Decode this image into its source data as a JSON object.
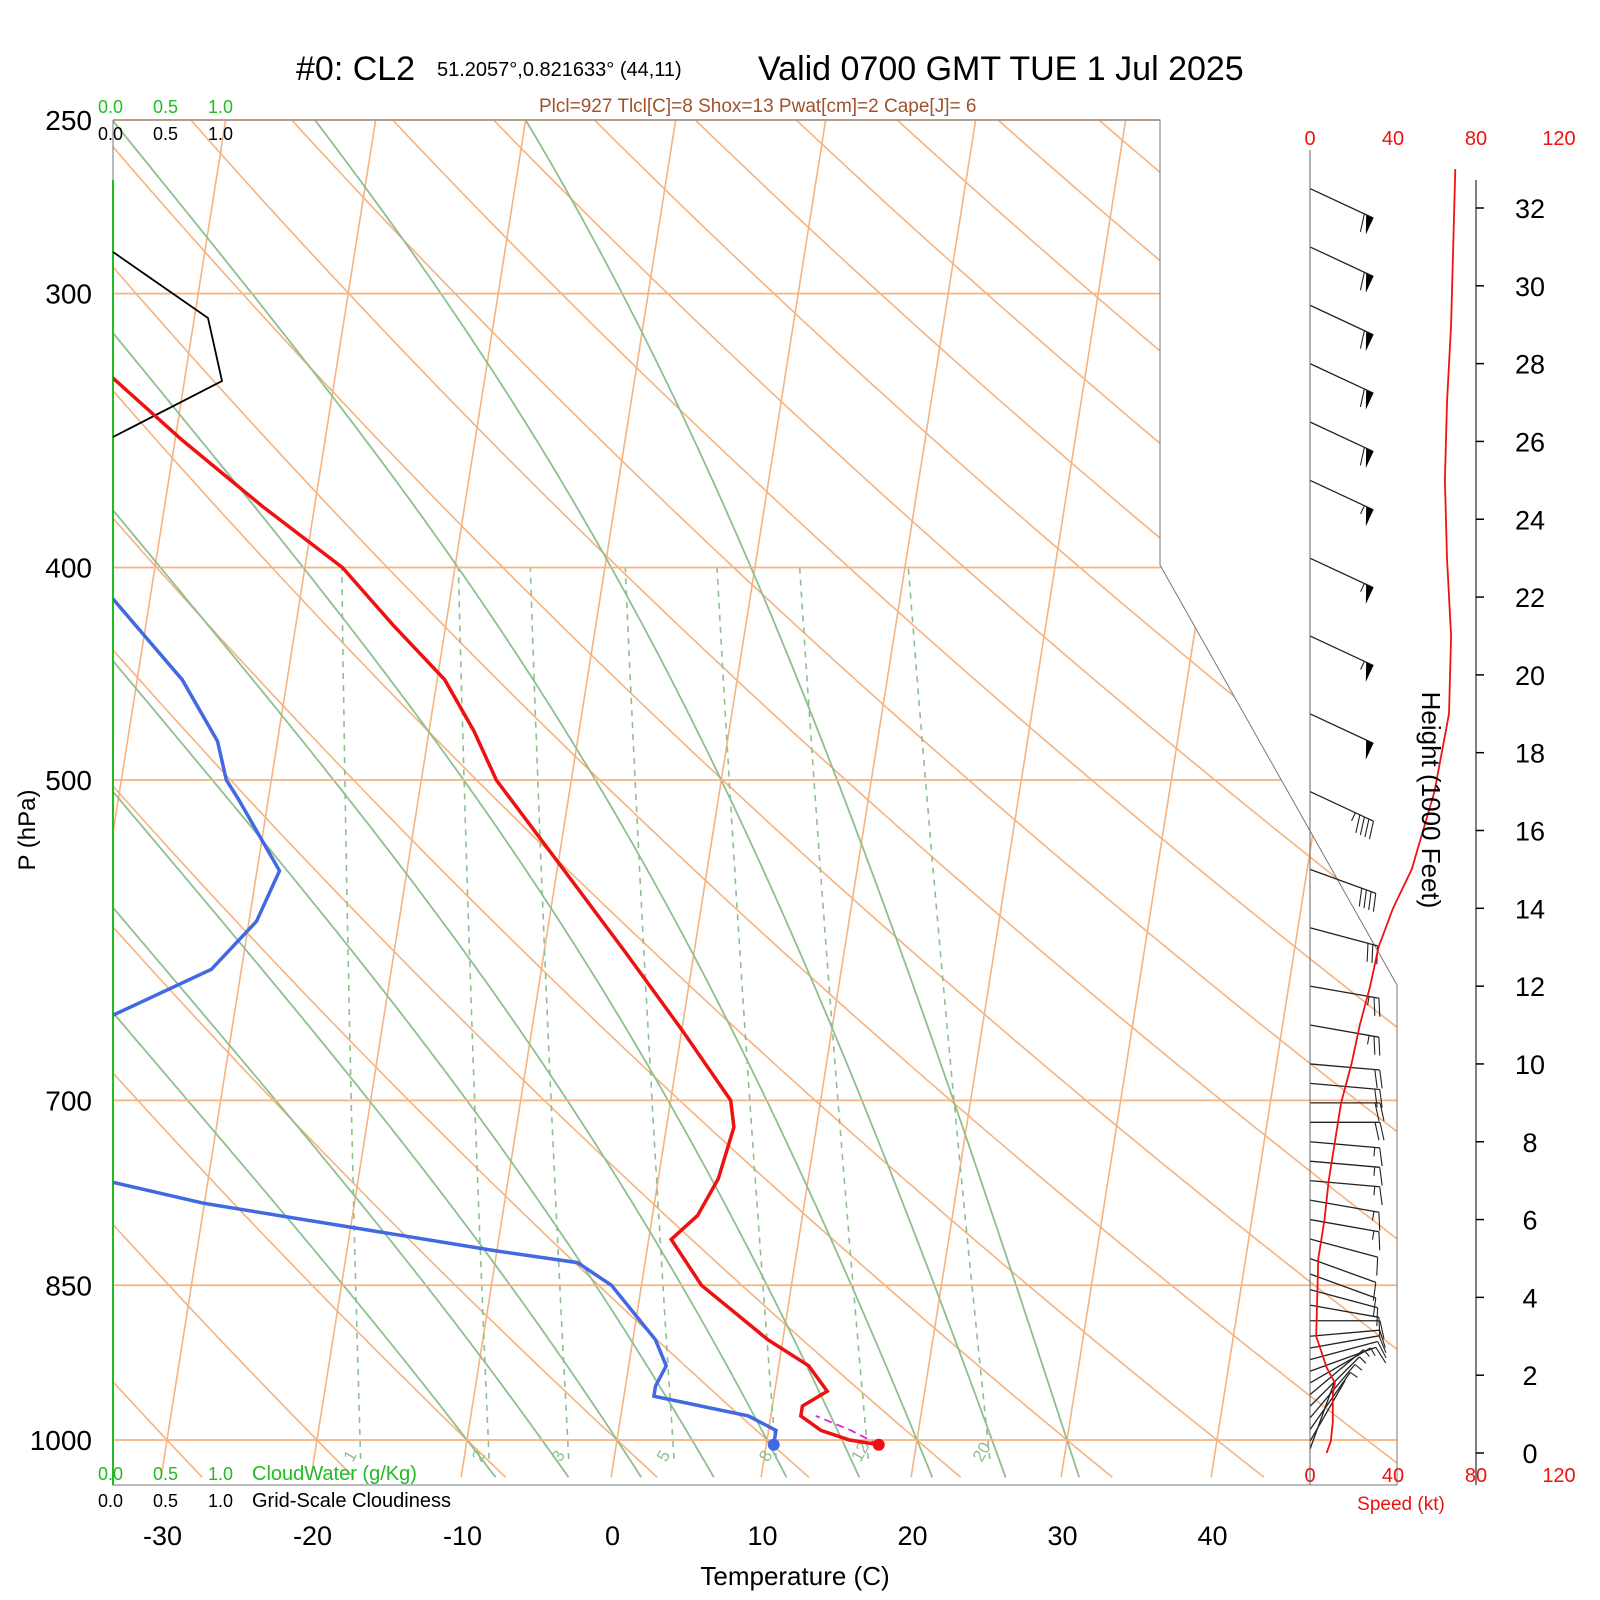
{
  "header": {
    "station": "#0: CL2",
    "location": "51.2057°,0.821633° (44,11)",
    "valid": "Valid 0700 GMT TUE 1 Jul 2025",
    "indices": "Plcl=927 Tlcl[C]=8 Shox=13 Pwat[cm]=2 Cape[J]= 6"
  },
  "colors": {
    "temperature": "#ee1111",
    "dewpoint": "#4169e1",
    "isotherm": "#f5b37f",
    "dry_adiabat": "#f5b37f",
    "moist_adiabat": "#8fbf8f",
    "mixing_ratio": "#8fbf8f",
    "cloud_water": "#22bb22",
    "index_text": "#a0522d",
    "speed": "#ee1111"
  },
  "chart_data": {
    "type": "skew-t",
    "xlabel": "Temperature (C)",
    "ylabel": "P (hPa)",
    "height_label": "Height (1000 Feet)",
    "speed_label": "Speed (kt)",
    "x_ticks": [
      -30,
      -20,
      -10,
      0,
      10,
      20,
      30,
      40
    ],
    "pressure_ticks": [
      250,
      300,
      400,
      500,
      700,
      850,
      1000
    ],
    "height_ticks": [
      0,
      2,
      4,
      6,
      8,
      10,
      12,
      14,
      16,
      18,
      20,
      22,
      24,
      26,
      28,
      30,
      32
    ],
    "speed_ticks": [
      0,
      40,
      80,
      120
    ],
    "cloud_ticks": [
      "0.0",
      "0.5",
      "1.0"
    ],
    "cloud_water_label": "CloudWater (g/Kg)",
    "cloudiness_label": "Grid-Scale Cloudiness",
    "ylim_hpa": [
      1030,
      250
    ],
    "xlim_c_at_surface": [
      -34,
      36
    ],
    "temperature": {
      "name": "Temperature",
      "p": [
        1005,
        1000,
        990,
        975,
        965,
        950,
        925,
        900,
        850,
        810,
        790,
        760,
        720,
        700,
        650,
        600,
        550,
        500,
        475,
        450,
        425,
        400,
        375,
        350,
        325,
        300,
        280,
        265
      ],
      "t": [
        17.5,
        15.5,
        13.5,
        12.0,
        12.0,
        13.5,
        12.0,
        9.0,
        4.0,
        1.5,
        3.0,
        4.0,
        4.5,
        4.0,
        0.0,
        -4.5,
        -9.5,
        -15.0,
        -17.0,
        -19.5,
        -23.5,
        -27.5,
        -33.5,
        -39.5,
        -45.5,
        -53.0,
        -59.0,
        -63.0
      ]
    },
    "dewpoint": {
      "name": "Dewpoint",
      "p": [
        1005,
        990,
        975,
        955,
        945,
        925,
        900,
        850,
        830,
        820,
        780,
        740,
        715,
        700,
        665,
        650,
        610,
        580,
        550,
        510,
        500,
        480,
        450,
        410,
        375,
        340,
        310,
        280,
        265
      ],
      "t": [
        10.5,
        10.5,
        8.5,
        2.0,
        2.0,
        2.5,
        1.5,
        -2.0,
        -4.5,
        -10.0,
        -30.0,
        -45.0,
        -52.0,
        -52.0,
        -45.0,
        -40.0,
        -32.0,
        -29.5,
        -28.5,
        -32.0,
        -33.0,
        -34.0,
        -37.0,
        -43.0,
        -49.0,
        -54.0,
        -58.0,
        -64.0,
        -67.0
      ]
    },
    "parcel": {
      "name": "Parcel",
      "p": [
        1005,
        990,
        975
      ],
      "t": [
        17.5,
        15.5,
        13.0
      ]
    },
    "isotherms_c": [
      -120,
      -110,
      -100,
      -90,
      -80,
      -70,
      -60,
      -50,
      -40,
      -30,
      -20,
      -10,
      0,
      10,
      20,
      30,
      40
    ],
    "isotherm_labels": [
      0,
      10,
      20,
      30
    ],
    "dry_adiabats_theta_c": [
      -30,
      -20,
      -10,
      0,
      10,
      20,
      30,
      40,
      50,
      60,
      70,
      80,
      90,
      100,
      110,
      120,
      130,
      140,
      150,
      160,
      170,
      180
    ],
    "dry_adiabat_labels": [
      10,
      0,
      -10,
      -20,
      -30
    ],
    "moist_adiabats_c": [
      -10,
      -5,
      0,
      5,
      10,
      15,
      20,
      25,
      30
    ],
    "mixing_ratio_gkg": [
      1,
      2,
      3,
      5,
      8,
      12,
      20
    ],
    "wind_barbs": [
      {
        "h": 0.1,
        "spd": 3,
        "dir": 200
      },
      {
        "h": 0.3,
        "spd": 4,
        "dir": 210
      },
      {
        "h": 0.6,
        "spd": 5,
        "dir": 215
      },
      {
        "h": 0.9,
        "spd": 6,
        "dir": 220
      },
      {
        "h": 1.2,
        "spd": 7,
        "dir": 225
      },
      {
        "h": 1.5,
        "spd": 8,
        "dir": 230
      },
      {
        "h": 1.8,
        "spd": 9,
        "dir": 240
      },
      {
        "h": 2.1,
        "spd": 10,
        "dir": 250
      },
      {
        "h": 2.4,
        "spd": 10,
        "dir": 255
      },
      {
        "h": 2.7,
        "spd": 11,
        "dir": 260
      },
      {
        "h": 3.0,
        "spd": 11,
        "dir": 265
      },
      {
        "h": 3.4,
        "spd": 12,
        "dir": 270
      },
      {
        "h": 3.8,
        "spd": 12,
        "dir": 280
      },
      {
        "h": 4.2,
        "spd": 13,
        "dir": 285
      },
      {
        "h": 4.6,
        "spd": 13,
        "dir": 290
      },
      {
        "h": 5.0,
        "spd": 14,
        "dir": 290
      },
      {
        "h": 5.5,
        "spd": 14,
        "dir": 285
      },
      {
        "h": 6.0,
        "spd": 15,
        "dir": 280
      },
      {
        "h": 6.5,
        "spd": 16,
        "dir": 280
      },
      {
        "h": 7.0,
        "spd": 17,
        "dir": 275
      },
      {
        "h": 7.5,
        "spd": 18,
        "dir": 275
      },
      {
        "h": 8.0,
        "spd": 19,
        "dir": 275
      },
      {
        "h": 8.5,
        "spd": 20,
        "dir": 270
      },
      {
        "h": 9.0,
        "spd": 21,
        "dir": 270
      },
      {
        "h": 9.5,
        "spd": 22,
        "dir": 275
      },
      {
        "h": 10.0,
        "spd": 23,
        "dir": 275
      },
      {
        "h": 11.0,
        "spd": 25,
        "dir": 280
      },
      {
        "h": 12.0,
        "spd": 27,
        "dir": 280
      },
      {
        "h": 13.5,
        "spd": 30,
        "dir": 285
      },
      {
        "h": 15.0,
        "spd": 40,
        "dir": 290
      },
      {
        "h": 17.0,
        "spd": 48,
        "dir": 295
      },
      {
        "h": 19.0,
        "spd": 53,
        "dir": 295
      },
      {
        "h": 21.0,
        "spd": 56,
        "dir": 295
      },
      {
        "h": 23.0,
        "spd": 58,
        "dir": 295
      },
      {
        "h": 25.0,
        "spd": 59,
        "dir": 295
      },
      {
        "h": 26.5,
        "spd": 60,
        "dir": 295
      },
      {
        "h": 28.0,
        "spd": 60,
        "dir": 295
      },
      {
        "h": 29.5,
        "spd": 60,
        "dir": 295
      },
      {
        "h": 31.0,
        "spd": 60,
        "dir": 295
      },
      {
        "h": 32.5,
        "spd": 60,
        "dir": 295
      }
    ],
    "speed_profile": {
      "h": [
        0,
        0.3,
        0.8,
        1.5,
        1.8,
        2.2,
        3,
        5,
        6,
        7,
        8,
        9,
        10,
        11,
        12,
        13,
        14,
        15,
        17,
        19,
        21,
        23,
        25,
        27,
        29,
        31,
        33
      ],
      "kt": [
        8,
        10,
        11,
        11,
        12,
        8,
        3,
        4,
        7,
        9,
        12,
        15,
        20,
        24,
        29,
        33,
        40,
        49,
        60,
        67,
        68,
        66,
        65,
        66,
        68,
        69,
        70
      ]
    }
  }
}
